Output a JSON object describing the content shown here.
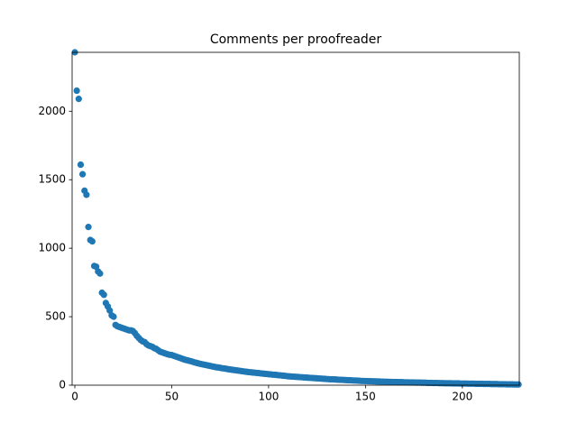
{
  "chart_data": {
    "type": "scatter",
    "title": "Comments per proofreader",
    "color": "#1f77b4",
    "xlim": [
      -1.4,
      229.4
    ],
    "xticks": [
      0,
      50,
      100,
      150,
      200
    ],
    "ylim": [
      0,
      2430
    ],
    "yticks": [
      0,
      500,
      1000,
      1500,
      2000
    ],
    "x": [
      0,
      1,
      2,
      3,
      4,
      5,
      6,
      7,
      8,
      9,
      10,
      11,
      12,
      13,
      14,
      15,
      16,
      17,
      18,
      19,
      20,
      21,
      22,
      23,
      24,
      25,
      26,
      27,
      28,
      29,
      30,
      31,
      32,
      33,
      34,
      35,
      36,
      37,
      38,
      39,
      40,
      41,
      42,
      43,
      44,
      45,
      46,
      47,
      48,
      49,
      50,
      51,
      52,
      53,
      54,
      55,
      56,
      57,
      58,
      59,
      60,
      61,
      62,
      63,
      64,
      65,
      66,
      67,
      68,
      69,
      70,
      71,
      72,
      73,
      74,
      75,
      76,
      77,
      78,
      79,
      80,
      81,
      82,
      83,
      84,
      85,
      86,
      87,
      88,
      89,
      90,
      91,
      92,
      93,
      94,
      95,
      96,
      97,
      98,
      99,
      100,
      101,
      102,
      103,
      104,
      105,
      106,
      107,
      108,
      109,
      110,
      111,
      112,
      113,
      114,
      115,
      116,
      117,
      118,
      119,
      120,
      121,
      122,
      123,
      124,
      125,
      126,
      127,
      128,
      129,
      130,
      131,
      132,
      133,
      134,
      135,
      136,
      137,
      138,
      139,
      140,
      141,
      142,
      143,
      144,
      145,
      146,
      147,
      148,
      149,
      150,
      151,
      152,
      153,
      154,
      155,
      156,
      157,
      158,
      159,
      160,
      161,
      162,
      163,
      164,
      165,
      166,
      167,
      168,
      169,
      170,
      171,
      172,
      173,
      174,
      175,
      176,
      177,
      178,
      179,
      180,
      181,
      182,
      183,
      184,
      185,
      186,
      187,
      188,
      189,
      190,
      191,
      192,
      193,
      194,
      195,
      196,
      197,
      198,
      199,
      200,
      201,
      202,
      203,
      204,
      205,
      206,
      207,
      208,
      209,
      210,
      211,
      212,
      213,
      214,
      215,
      216,
      217,
      218,
      219,
      220,
      221,
      222,
      223,
      224,
      225,
      226,
      227,
      228,
      229
    ],
    "values": [
      2430,
      2150,
      2090,
      1610,
      1540,
      1420,
      1390,
      1155,
      1060,
      1050,
      870,
      865,
      830,
      815,
      675,
      660,
      600,
      575,
      545,
      510,
      500,
      440,
      430,
      425,
      420,
      415,
      410,
      405,
      400,
      400,
      395,
      380,
      360,
      345,
      330,
      320,
      315,
      300,
      290,
      285,
      280,
      270,
      265,
      255,
      245,
      240,
      235,
      230,
      225,
      222,
      220,
      215,
      210,
      205,
      200,
      195,
      190,
      185,
      182,
      178,
      175,
      170,
      166,
      162,
      158,
      155,
      152,
      149,
      146,
      143,
      140,
      137,
      134,
      131,
      129,
      127,
      124,
      122,
      120,
      117,
      115,
      113,
      111,
      109,
      107,
      105,
      103,
      101,
      99,
      97,
      95,
      94,
      92,
      91,
      89,
      88,
      86,
      85,
      83,
      82,
      80,
      79,
      77,
      76,
      75,
      73,
      72,
      70,
      69,
      67,
      65,
      64,
      63,
      62,
      61,
      60,
      59,
      58,
      57,
      56,
      55,
      54,
      53,
      52,
      51,
      50,
      49,
      48,
      47,
      46,
      45,
      44,
      43,
      43,
      42,
      41,
      40,
      39,
      39,
      38,
      37,
      36,
      36,
      35,
      34,
      34,
      33,
      32,
      31,
      31,
      30,
      30,
      29,
      29,
      28,
      28,
      27,
      27,
      26,
      26,
      25,
      25,
      24,
      24,
      23,
      23,
      23,
      22,
      22,
      22,
      21,
      21,
      21,
      20,
      20,
      20,
      19,
      19,
      19,
      18,
      18,
      18,
      17,
      17,
      17,
      16,
      16,
      16,
      15,
      15,
      15,
      14,
      14,
      14,
      14,
      13,
      13,
      13,
      13,
      12,
      12,
      12,
      12,
      11,
      11,
      11,
      11,
      10,
      10,
      10,
      10,
      9,
      9,
      9,
      9,
      8,
      8,
      8,
      8,
      7,
      7,
      7,
      7,
      6,
      6,
      6,
      6,
      5,
      5,
      5
    ]
  }
}
